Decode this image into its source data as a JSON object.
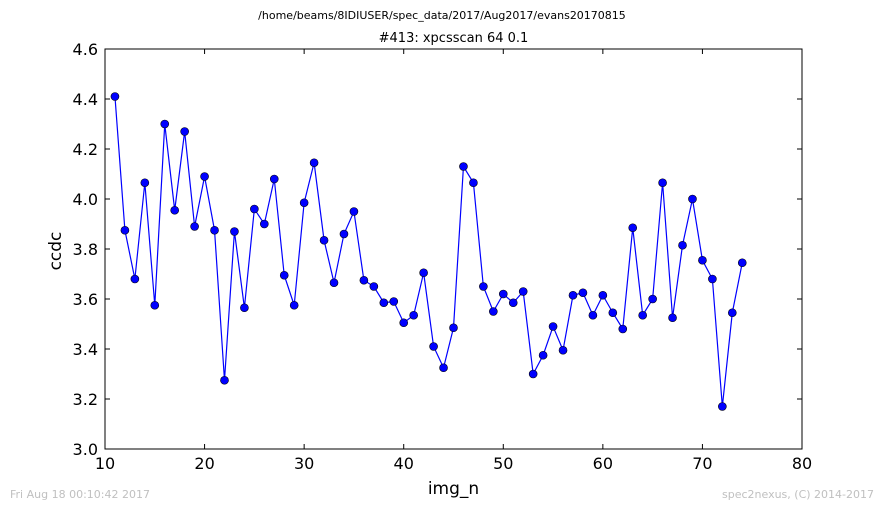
{
  "header": {
    "suptitle": "/home/beams/8IDIUSER/spec_data/2017/Aug2017/evans20170815"
  },
  "footer": {
    "left": "Fri Aug 18 00:10:42 2017",
    "right": "spec2nexus, (C) 2014-2017"
  },
  "chart_data": {
    "type": "line",
    "title": "#413: xpcsscan 64 0.1",
    "xlabel": "img_n",
    "ylabel": "ccdc",
    "xlim": [
      10,
      80
    ],
    "ylim": [
      3.0,
      4.6
    ],
    "xticks": [
      "10",
      "20",
      "30",
      "40",
      "50",
      "60",
      "70",
      "80"
    ],
    "yticks": [
      "3.0",
      "3.2",
      "3.4",
      "3.6",
      "3.8",
      "4.0",
      "4.2",
      "4.4",
      "4.6"
    ],
    "line_color": "#0000ff",
    "marker_color": "#0000ff",
    "grid": false,
    "x": [
      11,
      12,
      13,
      14,
      15,
      16,
      17,
      18,
      19,
      20,
      21,
      22,
      23,
      24,
      25,
      26,
      27,
      28,
      29,
      30,
      31,
      32,
      33,
      34,
      35,
      36,
      37,
      38,
      39,
      40,
      41,
      42,
      43,
      44,
      45,
      46,
      47,
      48,
      49,
      50,
      51,
      52,
      53,
      54,
      55,
      56,
      57,
      58,
      59,
      60,
      61,
      62,
      63,
      64,
      65,
      66,
      67,
      68,
      69,
      70,
      71,
      72,
      73,
      74
    ],
    "y": [
      4.41,
      3.875,
      3.68,
      4.065,
      3.575,
      4.3,
      3.955,
      4.27,
      3.89,
      4.09,
      3.875,
      3.275,
      3.87,
      3.565,
      3.96,
      3.9,
      4.08,
      3.695,
      3.575,
      3.985,
      4.145,
      3.835,
      3.665,
      3.86,
      3.95,
      3.675,
      3.65,
      3.585,
      3.59,
      3.505,
      3.535,
      3.705,
      3.41,
      3.325,
      3.485,
      4.13,
      4.065,
      3.65,
      3.55,
      3.62,
      3.585,
      3.63,
      3.3,
      3.375,
      3.49,
      3.395,
      3.615,
      3.625,
      3.535,
      3.615,
      3.545,
      3.48,
      3.885,
      3.535,
      3.6,
      4.065,
      3.525,
      3.815,
      4.0,
      3.755,
      3.68,
      3.17,
      3.545,
      3.745
    ]
  }
}
